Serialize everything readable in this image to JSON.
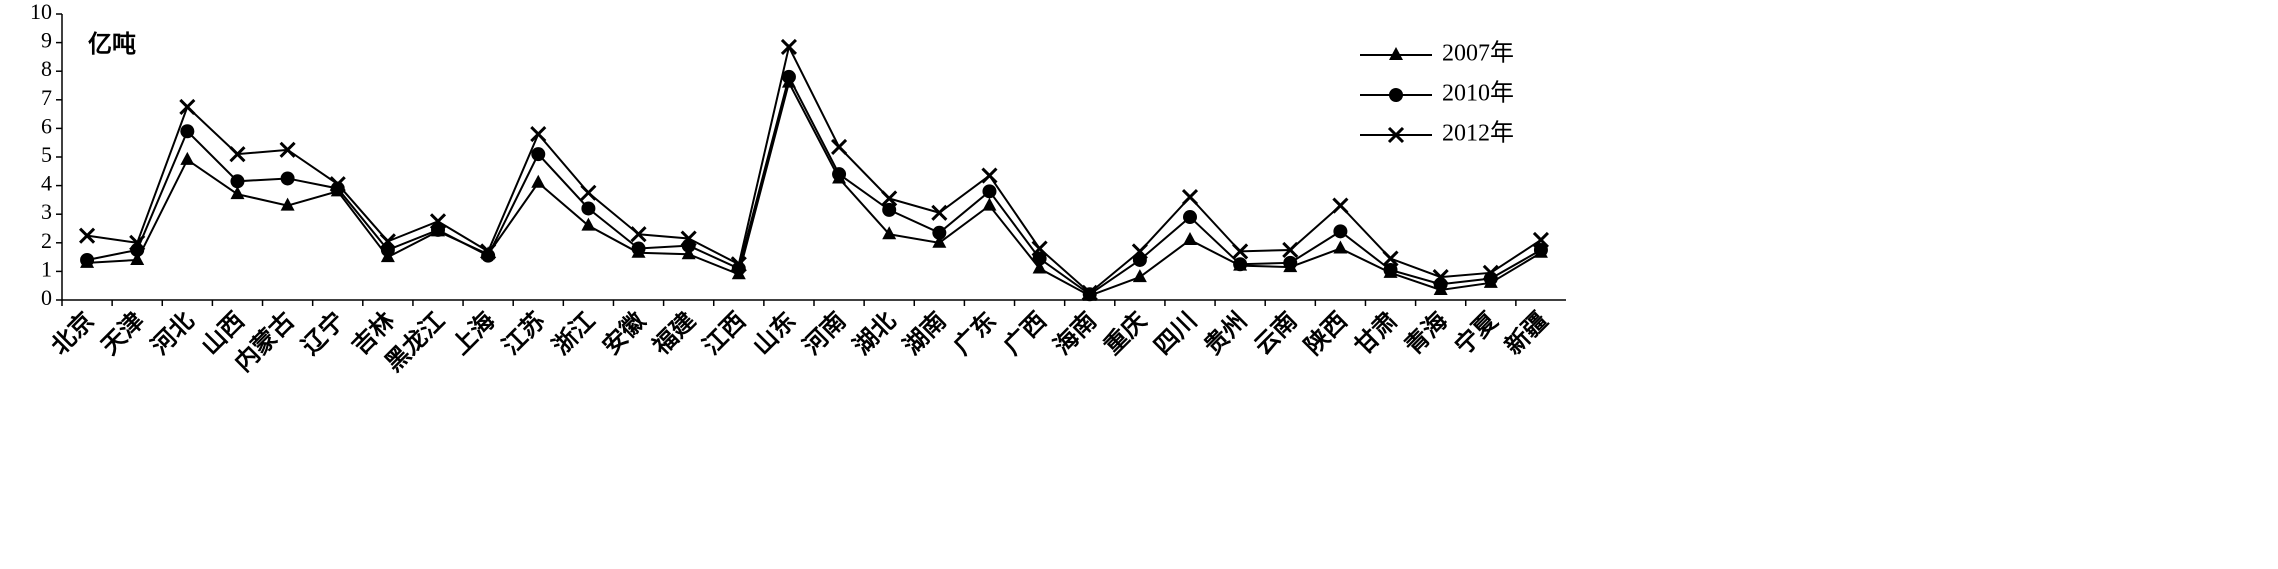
{
  "chart_data": {
    "type": "line",
    "annotation": "亿吨",
    "categories": [
      "北京",
      "天津",
      "河北",
      "山西",
      "内蒙古",
      "辽宁",
      "吉林",
      "黑龙江",
      "上海",
      "江苏",
      "浙江",
      "安徽",
      "福建",
      "江西",
      "山东",
      "河南",
      "湖北",
      "湖南",
      "广东",
      "广西",
      "海南",
      "重庆",
      "四川",
      "贵州",
      "云南",
      "陕西",
      "甘肃",
      "青海",
      "宁夏",
      "新疆"
    ],
    "series": [
      {
        "name": "2007年",
        "color": "#000000",
        "marker": "triangle",
        "values": [
          1.3,
          1.4,
          4.9,
          3.7,
          3.3,
          3.8,
          1.5,
          2.4,
          1.6,
          4.1,
          2.6,
          1.65,
          1.6,
          0.9,
          7.6,
          4.25,
          2.3,
          2.0,
          3.3,
          1.1,
          0.15,
          0.8,
          2.1,
          1.2,
          1.15,
          1.8,
          0.95,
          0.35,
          0.6,
          1.65
        ]
      },
      {
        "name": "2010年",
        "color": "#000000",
        "marker": "circle",
        "values": [
          1.4,
          1.75,
          5.9,
          4.15,
          4.25,
          3.9,
          1.75,
          2.45,
          1.55,
          5.1,
          3.2,
          1.8,
          1.9,
          1.1,
          7.8,
          4.4,
          3.15,
          2.35,
          3.8,
          1.45,
          0.2,
          1.4,
          2.9,
          1.25,
          1.3,
          2.4,
          1.05,
          0.55,
          0.75,
          1.75
        ]
      },
      {
        "name": "2012年",
        "color": "#000000",
        "marker": "cross",
        "values": [
          2.25,
          2.0,
          6.75,
          5.1,
          5.25,
          4.05,
          2.05,
          2.75,
          1.7,
          5.8,
          3.75,
          2.3,
          2.15,
          1.25,
          8.85,
          5.35,
          3.55,
          3.05,
          4.35,
          1.8,
          0.25,
          1.7,
          3.6,
          1.7,
          1.75,
          3.3,
          1.45,
          0.8,
          0.95,
          2.1
        ]
      }
    ],
    "ylim": [
      0,
      10
    ],
    "yticks": [
      0,
      1,
      2,
      3,
      4,
      5,
      6,
      7,
      8,
      9,
      10
    ],
    "legend": "upper right"
  }
}
